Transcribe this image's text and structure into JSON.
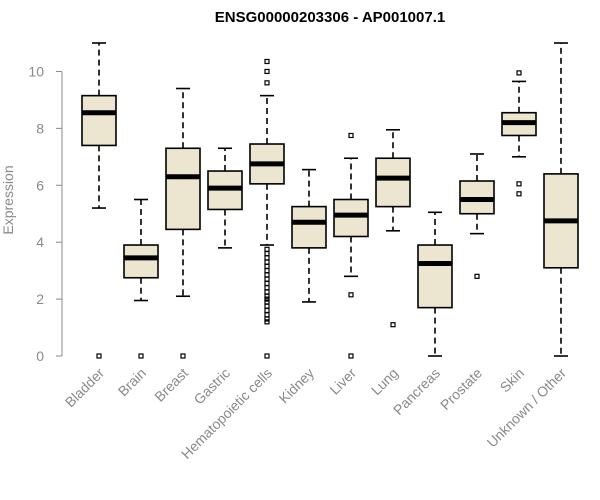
{
  "chart_data": {
    "type": "box",
    "title": "ENSG00000203306 - AP001007.1",
    "xlabel": "",
    "ylabel": "Expression",
    "ylim": [
      0,
      11
    ],
    "yticks": [
      0,
      2,
      4,
      6,
      8,
      10
    ],
    "series": [
      {
        "name": "Bladder",
        "whisker_low": 5.2,
        "q1": 7.4,
        "median": 8.55,
        "q3": 9.15,
        "whisker_high": 11.0,
        "outliers": [
          0
        ]
      },
      {
        "name": "Brain",
        "whisker_low": 1.95,
        "q1": 2.75,
        "median": 3.45,
        "q3": 3.9,
        "whisker_high": 5.5,
        "outliers": [
          0
        ]
      },
      {
        "name": "Breast",
        "whisker_low": 2.1,
        "q1": 4.45,
        "median": 6.3,
        "q3": 7.3,
        "whisker_high": 9.4,
        "outliers": [
          0
        ]
      },
      {
        "name": "Gastric",
        "whisker_low": 3.8,
        "q1": 5.15,
        "median": 5.9,
        "q3": 6.5,
        "whisker_high": 7.3,
        "outliers": []
      },
      {
        "name": "Hematopoietic cells",
        "whisker_low": 3.9,
        "q1": 6.05,
        "median": 6.75,
        "q3": 7.45,
        "whisker_high": 9.15,
        "outliers": [
          0,
          1.2,
          1.3,
          1.45,
          1.6,
          1.75,
          1.9,
          2.0,
          2.1,
          2.25,
          2.4,
          2.55,
          2.7,
          2.85,
          3.0,
          3.15,
          3.3,
          3.45,
          3.6,
          3.75,
          9.6,
          10.0,
          10.35
        ]
      },
      {
        "name": "Kidney",
        "whisker_low": 1.9,
        "q1": 3.8,
        "median": 4.7,
        "q3": 5.25,
        "whisker_high": 6.55,
        "outliers": []
      },
      {
        "name": "Liver",
        "whisker_low": 2.8,
        "q1": 4.2,
        "median": 4.95,
        "q3": 5.5,
        "whisker_high": 6.95,
        "outliers": [
          0,
          2.15,
          7.75
        ]
      },
      {
        "name": "Lung",
        "whisker_low": 4.4,
        "q1": 5.25,
        "median": 6.25,
        "q3": 6.95,
        "whisker_high": 7.95,
        "outliers": [
          1.1
        ]
      },
      {
        "name": "Pancreas",
        "whisker_low": 0,
        "q1": 1.7,
        "median": 3.25,
        "q3": 3.9,
        "whisker_high": 5.05,
        "outliers": []
      },
      {
        "name": "Prostate",
        "whisker_low": 4.3,
        "q1": 5.0,
        "median": 5.5,
        "q3": 6.15,
        "whisker_high": 7.1,
        "outliers": [
          2.8
        ]
      },
      {
        "name": "Skin",
        "whisker_low": 7.0,
        "q1": 7.75,
        "median": 8.2,
        "q3": 8.55,
        "whisker_high": 9.65,
        "outliers": [
          5.7,
          6.05,
          9.95
        ]
      },
      {
        "name": "Unknown / Other",
        "whisker_low": 0,
        "q1": 3.1,
        "median": 4.75,
        "q3": 6.4,
        "whisker_high": 11.0,
        "outliers": []
      }
    ]
  }
}
